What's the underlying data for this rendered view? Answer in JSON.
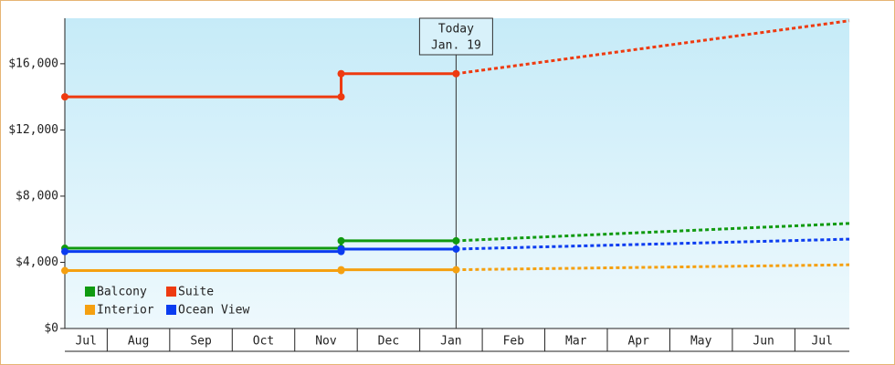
{
  "chart_data": {
    "type": "line",
    "annotation": {
      "label": "Today",
      "date": "Jan. 19"
    },
    "xticks": [
      "Jul",
      "Aug",
      "Sep",
      "Oct",
      "Nov",
      "Dec",
      "Jan",
      "Feb",
      "Mar",
      "Apr",
      "May",
      "Jun",
      "Jul"
    ],
    "xlim": [
      "Jul 11",
      "Jul 28"
    ],
    "ylim": [
      0,
      18750
    ],
    "yticks": [
      {
        "value": 0,
        "label": "$0"
      },
      {
        "value": 4000,
        "label": "$4,000"
      },
      {
        "value": 8000,
        "label": "$8,000"
      },
      {
        "value": 12000,
        "label": "$12,000"
      },
      {
        "value": 16000,
        "label": "$16,000"
      }
    ],
    "series": [
      {
        "name": "Balcony",
        "color": "#109a10",
        "x": [
          "Jul 11",
          "Nov 24",
          "Nov 24",
          "Jan 19",
          "Jul 28"
        ],
        "values": [
          4850,
          4850,
          5300,
          5300,
          6350
        ]
      },
      {
        "name": "Suite",
        "color": "#ee3a10",
        "x": [
          "Jul 11",
          "Nov 24",
          "Nov 24",
          "Jan 19",
          "Jul 28"
        ],
        "values": [
          14000,
          14000,
          15400,
          15400,
          18600
        ]
      },
      {
        "name": "Interior",
        "color": "#f5a010",
        "x": [
          "Jul 11",
          "Nov 24",
          "Nov 24",
          "Jan 19",
          "Jul 28"
        ],
        "values": [
          3500,
          3500,
          3550,
          3550,
          3850
        ]
      },
      {
        "name": "Ocean View",
        "color": "#0a3cf0",
        "x": [
          "Jul 11",
          "Nov 24",
          "Nov 24",
          "Jan 19",
          "Jul 28"
        ],
        "values": [
          4650,
          4650,
          4800,
          4800,
          5400
        ]
      }
    ]
  }
}
